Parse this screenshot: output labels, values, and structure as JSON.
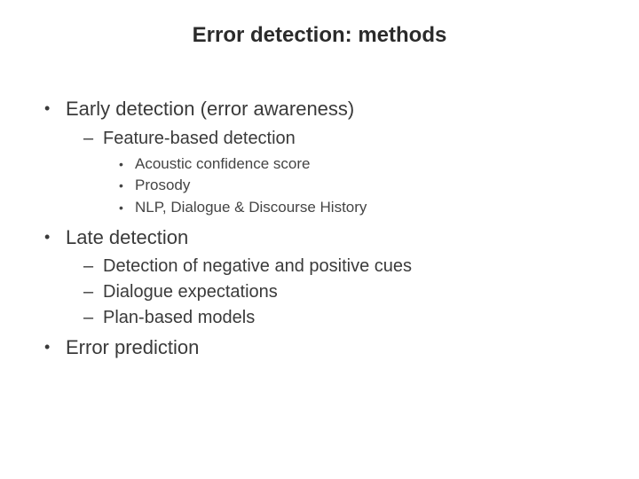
{
  "title": "Error detection: methods",
  "colors": {
    "background": "#ffffff",
    "text": "#3a3a3a",
    "title": "#2b2b2b"
  },
  "typography": {
    "font_family": "Verdana",
    "title_fontsize": 24,
    "title_weight": "bold",
    "lvl1_fontsize": 22,
    "lvl2_fontsize": 20,
    "lvl3_fontsize": 17
  },
  "bullets": {
    "lvl1_glyph": "•",
    "lvl2_glyph": "–",
    "lvl3_glyph": "•"
  },
  "items": [
    {
      "text": "Early detection (error awareness)",
      "children": [
        {
          "text": "Feature-based detection",
          "children": [
            {
              "text": "Acoustic confidence score"
            },
            {
              "text": "Prosody"
            },
            {
              "text": "NLP, Dialogue & Discourse History"
            }
          ]
        }
      ]
    },
    {
      "text": "Late detection",
      "children": [
        {
          "text": "Detection of negative and positive cues"
        },
        {
          "text": "Dialogue expectations"
        },
        {
          "text": "Plan-based models"
        }
      ]
    },
    {
      "text": "Error prediction"
    }
  ]
}
